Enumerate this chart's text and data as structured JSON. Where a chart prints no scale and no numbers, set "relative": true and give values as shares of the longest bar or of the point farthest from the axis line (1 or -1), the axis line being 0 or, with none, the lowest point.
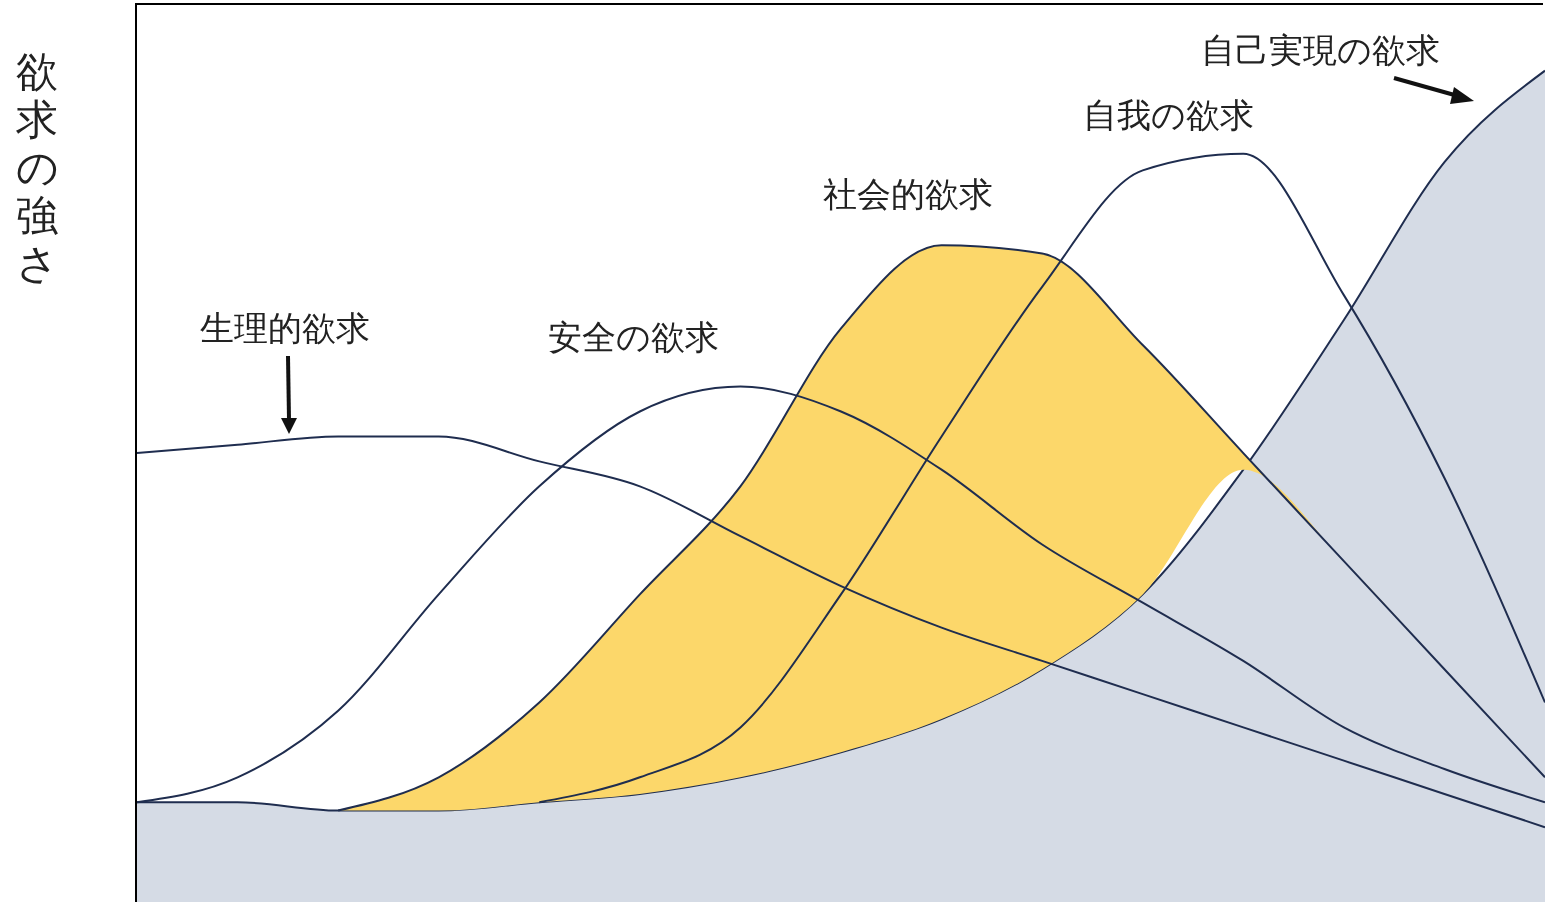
{
  "chart_data": {
    "type": "line",
    "relative": true,
    "ylabel": "欲求の強さ",
    "marker": "none",
    "categories": [
      null,
      null,
      null,
      null,
      null,
      null,
      null,
      null,
      null,
      null,
      null,
      null,
      null,
      null,
      null
    ],
    "series": [
      {
        "name": "自己実現の欲求",
        "type": "area",
        "color": "#d5dbe5",
        "values": [
          0.12,
          0.12,
          0.11,
          0.11,
          0.12,
          0.13,
          0.15,
          0.18,
          0.22,
          0.28,
          0.37,
          0.52,
          0.7,
          0.89,
          1.0
        ]
      },
      {
        "name": "社会的欲求",
        "type": "area",
        "color": "#fcd76a",
        "values": [
          null,
          null,
          0.11,
          0.15,
          0.24,
          0.37,
          0.5,
          0.69,
          0.79,
          0.78,
          0.67,
          0.54,
          0.41,
          0.28,
          0.15
        ]
      },
      {
        "name": "生理的欲求",
        "color": "#1f2d4f",
        "values": [
          0.54,
          0.55,
          0.56,
          0.56,
          0.53,
          0.5,
          0.44,
          0.38,
          0.33,
          0.29,
          0.25,
          0.21,
          0.17,
          0.13,
          0.09
        ]
      },
      {
        "name": "安全の欲求",
        "color": "#1f2d4f",
        "values": [
          0.12,
          0.15,
          0.23,
          0.37,
          0.5,
          0.59,
          0.62,
          0.59,
          0.52,
          0.43,
          0.36,
          0.29,
          0.21,
          0.16,
          0.12
        ]
      },
      {
        "name": "自我の欲求",
        "color": "#1f2d4f",
        "values": [
          null,
          null,
          null,
          null,
          0.12,
          0.15,
          0.21,
          0.37,
          0.56,
          0.74,
          0.88,
          0.9,
          0.73,
          0.51,
          0.24
        ]
      }
    ]
  }
}
